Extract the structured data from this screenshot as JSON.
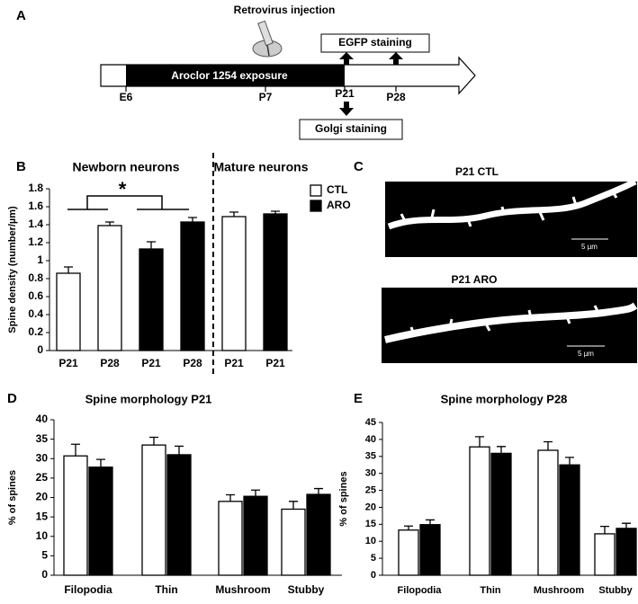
{
  "panels": {
    "labels": [
      "A",
      "B",
      "C",
      "D",
      "E"
    ],
    "a": {
      "injection": "Retrovirus injection",
      "egfp": "EGFP staining",
      "exposure": "Aroclor 1254 exposure",
      "timepoints": [
        "E6",
        "P7",
        "P21",
        "P28"
      ],
      "golgi": "Golgi staining"
    },
    "c": {
      "titles": [
        "P21 CTL",
        "P21 ARO"
      ],
      "scale_labels": [
        "5 µm",
        "5 µm"
      ]
    }
  },
  "chart_data": [
    {
      "type": "bar",
      "y_label": "Spine density (number/µm)",
      "group_labels": [
        "Newborn neurons",
        "Mature neurons"
      ],
      "annotation": "*",
      "categories": [
        "P21",
        "P28",
        "P21",
        "P28",
        "P21",
        "P21"
      ],
      "series": [
        {
          "name": "CTL",
          "color": "#ffffff",
          "values": [
            0.86,
            1.39,
            null,
            null,
            1.49,
            null
          ],
          "errors": [
            0.07,
            0.04,
            null,
            null,
            0.05,
            null
          ]
        },
        {
          "name": "ARO",
          "color": "#000000",
          "values": [
            null,
            null,
            1.13,
            1.43,
            null,
            1.52
          ],
          "errors": [
            null,
            null,
            0.08,
            0.05,
            null,
            0.03
          ]
        }
      ],
      "ylim": [
        0,
        1.8
      ],
      "yticks": [
        0,
        0.2,
        0.4,
        0.6,
        0.8,
        1,
        1.2,
        1.4,
        1.6,
        1.8
      ],
      "legend": "right"
    },
    {
      "type": "bar",
      "title": "Spine morphology P21",
      "y_label": "% of spines",
      "categories": [
        "Filopodia",
        "Thin",
        "Mushroom",
        "Stubby"
      ],
      "series": [
        {
          "color": "#ffffff",
          "values": [
            30.7,
            33.5,
            19,
            17
          ],
          "errors": [
            3,
            2,
            1.7,
            2
          ]
        },
        {
          "color": "#000000",
          "values": [
            27.8,
            31,
            20.3,
            20.8
          ],
          "errors": [
            2,
            2.2,
            1.6,
            1.5
          ]
        }
      ],
      "ylim": [
        0,
        40
      ],
      "yticks": [
        0,
        5,
        10,
        15,
        20,
        25,
        30,
        35,
        40
      ]
    },
    {
      "type": "bar",
      "title": "Spine morphology P28",
      "y_label": "% of spines",
      "categories": [
        "Filopodia",
        "Thin",
        "Mushroom",
        "Stubby"
      ],
      "series": [
        {
          "color": "#ffffff",
          "values": [
            13.3,
            37.8,
            36.8,
            12.2
          ],
          "errors": [
            1.2,
            3,
            2.5,
            2.2
          ]
        },
        {
          "color": "#000000",
          "values": [
            14.9,
            35.9,
            32.5,
            13.8
          ],
          "errors": [
            1.4,
            2,
            2.2,
            1.5
          ]
        }
      ],
      "ylim": [
        0,
        45
      ],
      "yticks": [
        0,
        5,
        10,
        15,
        20,
        25,
        30,
        35,
        40,
        45
      ]
    }
  ]
}
